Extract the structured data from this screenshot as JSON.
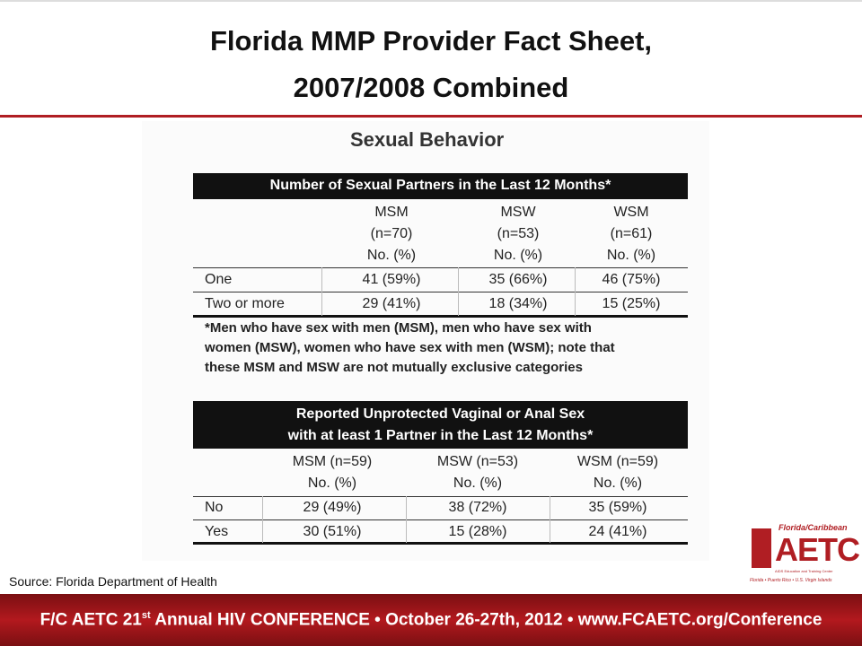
{
  "title": [
    "Florida MMP Provider Fact Sheet,",
    "2007/2008 Combined"
  ],
  "section": "Sexual Behavior",
  "table1": {
    "header": "Number of Sexual Partners in the Last 12 Months*",
    "columns": [
      [
        "MSM",
        "(n=70)",
        "No. (%)"
      ],
      [
        "MSW",
        "(n=53)",
        "No. (%)"
      ],
      [
        "WSM",
        "(n=61)",
        "No. (%)"
      ]
    ],
    "rows": [
      [
        "One",
        "41 (59%)",
        "35 (66%)",
        "46 (75%)"
      ],
      [
        "Two or more",
        "29 (41%)",
        "18 (34%)",
        "15 (25%)"
      ]
    ]
  },
  "footnote": [
    "*Men who have sex with men (MSM), men who have sex with",
    "women (MSW), women who have sex with men (WSM); note that",
    "these MSM and MSW are not mutually exclusive categories"
  ],
  "table2": {
    "header": [
      "Reported Unprotected Vaginal or Anal Sex",
      "with at least 1 Partner in the Last 12 Months*"
    ],
    "columns": [
      [
        "MSM (n=59)",
        "No. (%)"
      ],
      [
        "MSW (n=53)",
        "No. (%)"
      ],
      [
        "WSM (n=59)",
        "No. (%)"
      ]
    ],
    "rows": [
      [
        "No",
        "29 (49%)",
        "38 (72%)",
        "35 (59%)"
      ],
      [
        "Yes",
        "30 (51%)",
        "15 (28%)",
        "24 (41%)"
      ]
    ]
  },
  "source": "Source:  Florida Department of Health",
  "footer": [
    "F/C AETC 21",
    "st",
    " Annual HIV CONFERENCE • October 26-27th, 2012 • www.FCAETC.org/Conference"
  ],
  "logo": {
    "top": "Florida/Caribbean",
    "name": "AETC",
    "sub": "AIDS Education and Training Center",
    "bottom": "Florida • Puerto Rico • U.S. Virgin Islands"
  }
}
